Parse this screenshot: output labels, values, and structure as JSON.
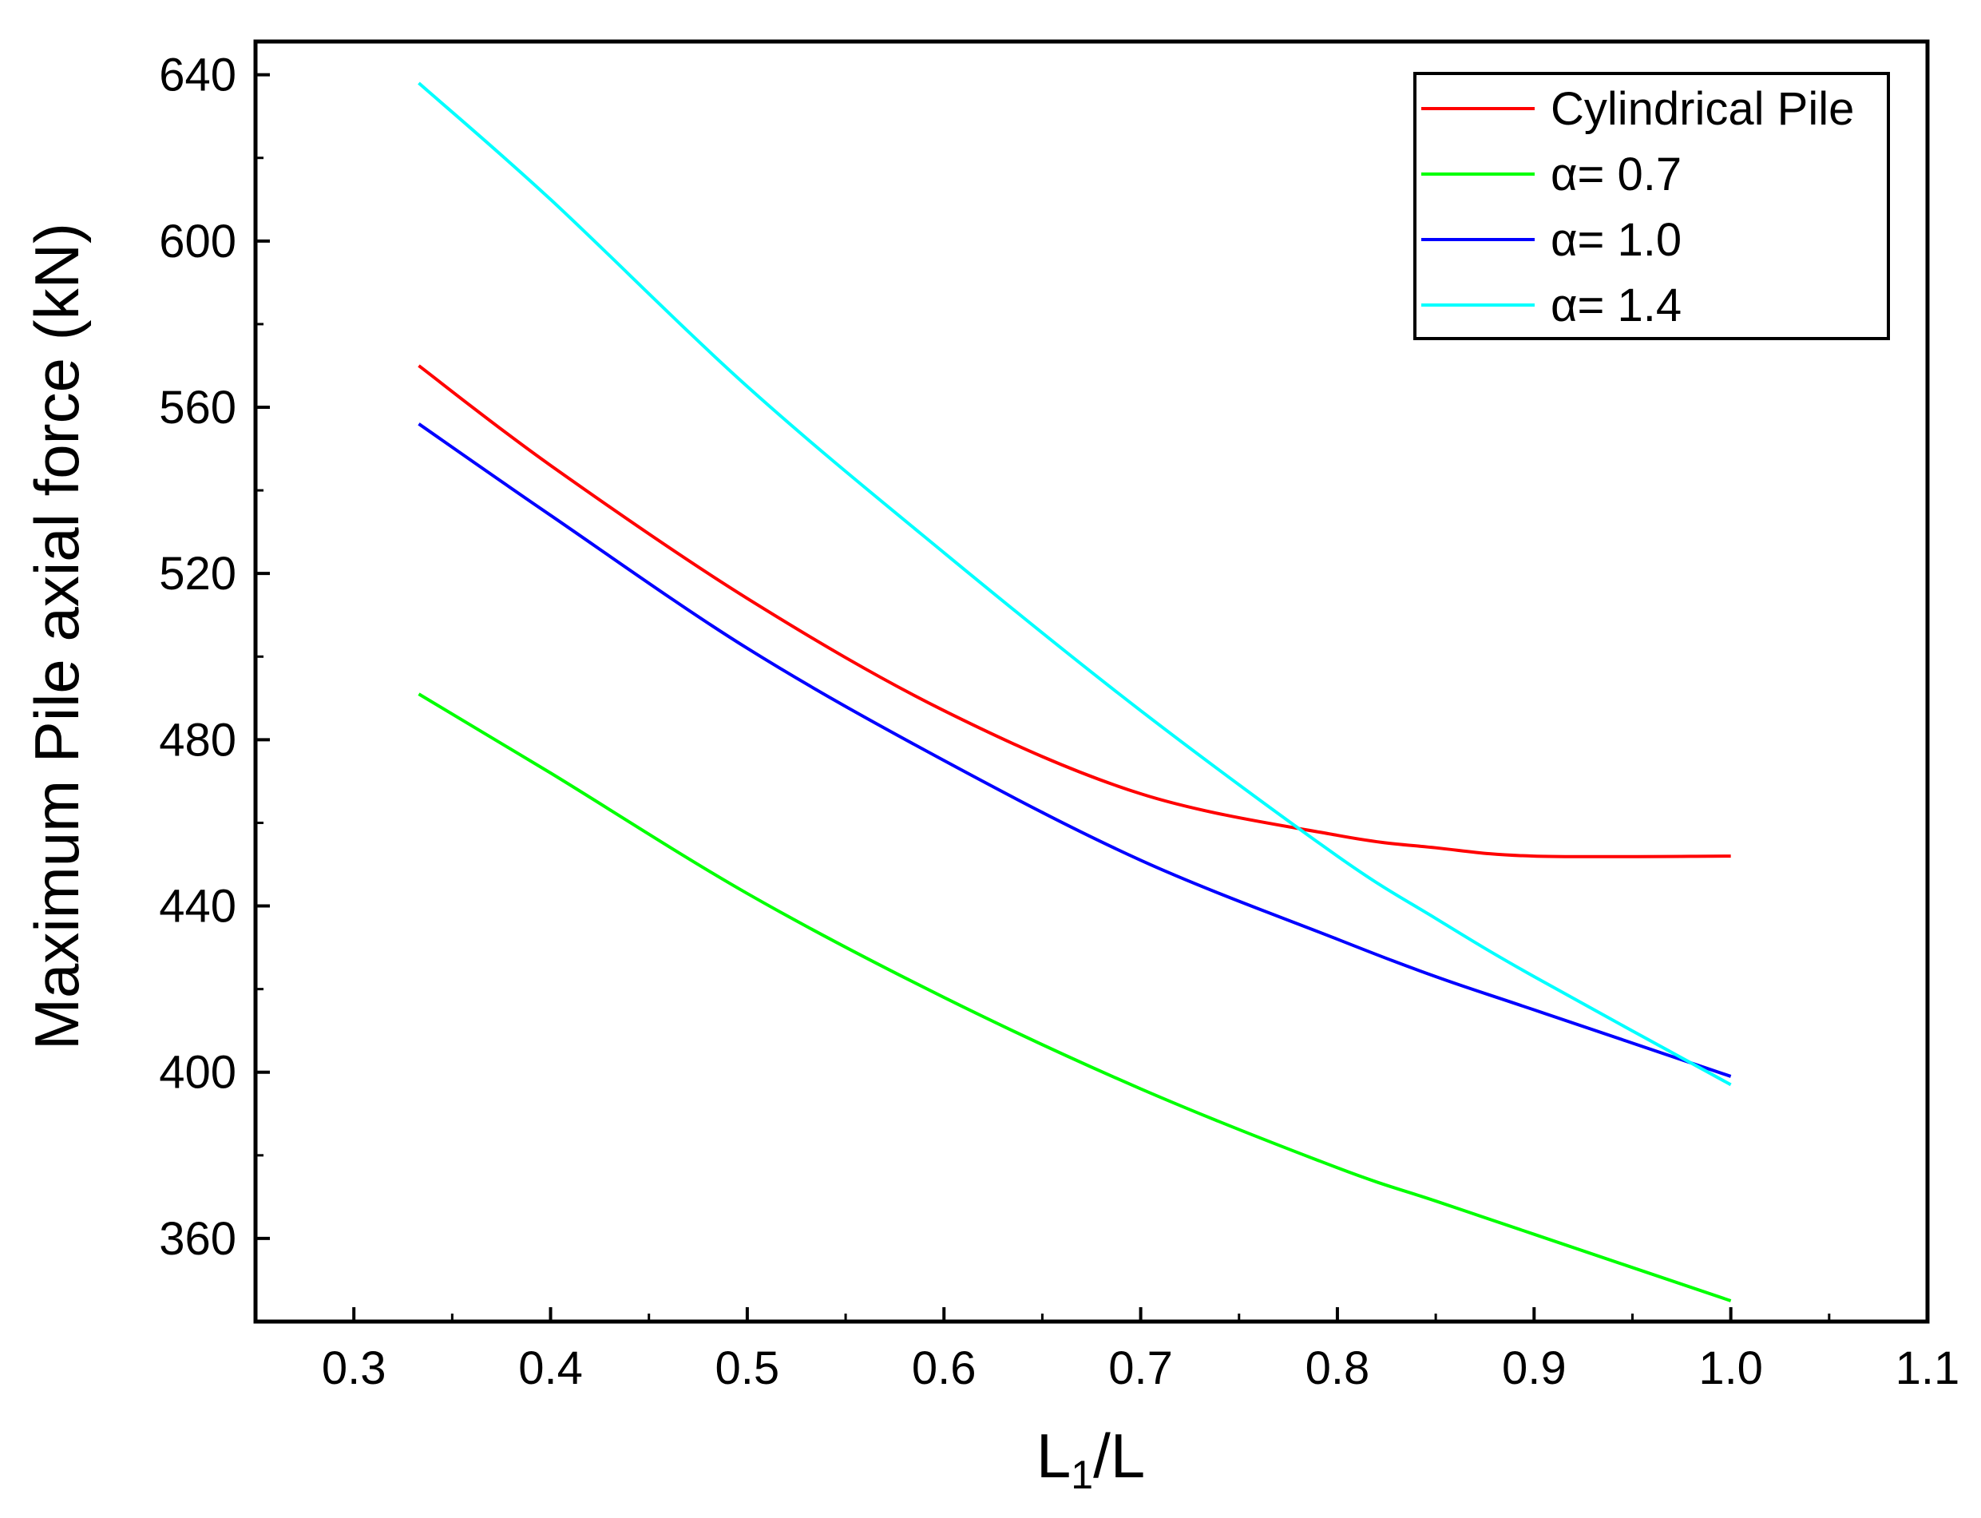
{
  "chart_data": {
    "type": "line",
    "title": "",
    "xlabel": "L1/L",
    "xlabel_main": "L",
    "xlabel_sub": "1",
    "xlabel_rest": "/L",
    "ylabel": "Maximum Pile axial force (kN)",
    "xlim": [
      0.25,
      1.1
    ],
    "ylim": [
      340,
      648
    ],
    "xticks": [
      0.3,
      0.4,
      0.5,
      0.6,
      0.7,
      0.8,
      0.9,
      1.0,
      1.1
    ],
    "xtick_labels": [
      "0.3",
      "0.4",
      "0.5",
      "0.6",
      "0.7",
      "0.8",
      "0.9",
      "1.0",
      "1.1"
    ],
    "yticks": [
      360,
      400,
      440,
      480,
      520,
      560,
      600,
      640
    ],
    "ytick_labels": [
      "360",
      "400",
      "440",
      "480",
      "520",
      "560",
      "600",
      "640"
    ],
    "grid": false,
    "legend_position": "upper right",
    "x": [
      0.333,
      0.4,
      0.5,
      0.6,
      0.7,
      0.8,
      0.85,
      0.9,
      1.0
    ],
    "series": [
      {
        "name": "Cylindrical Pile",
        "color": "#ff0000",
        "values": [
          570,
          546,
          514,
          487,
          467,
          457,
          454,
          452,
          452
        ]
      },
      {
        "name": "α= 0.7",
        "color": "#00ff00",
        "values": [
          491,
          472,
          443,
          418,
          396,
          377,
          369,
          361,
          345
        ]
      },
      {
        "name": "α= 1.0",
        "color": "#0000ff",
        "values": [
          556,
          534,
          502,
          475,
          451,
          432,
          423,
          415,
          399
        ]
      },
      {
        "name": "α= 1.4",
        "color": "#00ffff",
        "values": [
          638,
          610,
          565,
          525,
          487,
          452,
          437,
          423,
          397
        ]
      }
    ]
  }
}
